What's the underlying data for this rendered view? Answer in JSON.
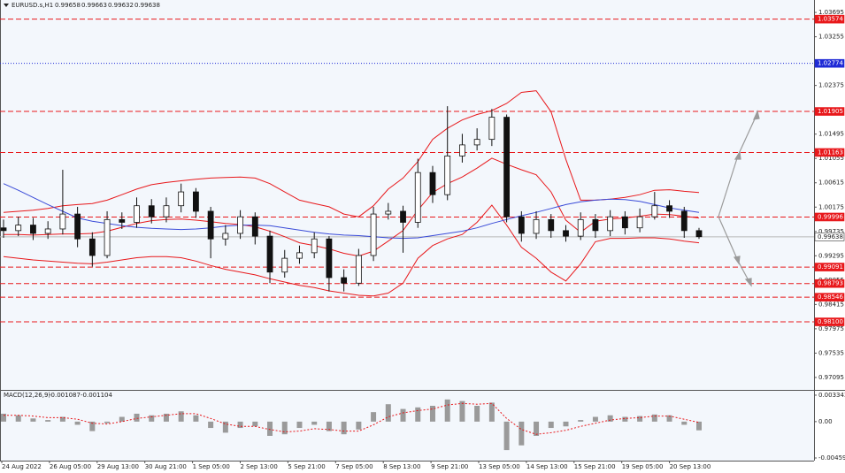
{
  "chart_data": [
    {
      "type": "candlestick",
      "title": "EURUSD.s,H1",
      "header_values": [
        0.99658,
        0.99663,
        0.99632,
        0.99638
      ],
      "x_labels": [
        "24 Aug 2022",
        "26 Aug 05:00",
        "29 Aug 13:00",
        "30 Aug 21:00",
        "1 Sep 05:00",
        "2 Sep 13:00",
        "5 Sep 21:00",
        "7 Sep 05:00",
        "8 Sep 13:00",
        "9 Sep 21:00",
        "13 Sep 05:00",
        "14 Sep 13:00",
        "15 Sep 21:00",
        "19 Sep 05:00",
        "20 Sep 13:00"
      ],
      "ohlc": {
        "open": [
          0.998,
          0.9975,
          0.9985,
          0.997,
          0.9978,
          1.0005,
          0.996,
          0.993,
          0.9995,
          0.999,
          1.002,
          1.0,
          1.002,
          1.0045,
          1.001,
          0.996,
          0.997,
          1.0,
          0.9965,
          0.99,
          0.9925,
          0.9935,
          0.996,
          0.989,
          0.988,
          0.993,
          1.0005,
          1.001,
          0.999,
          1.008,
          1.004,
          1.011,
          1.013,
          1.014,
          1.018,
          1.0,
          0.997,
          0.9995,
          0.9975,
          0.9965,
          0.9995,
          0.9975,
          1.0,
          0.998,
          1.0,
          1.002,
          1.001,
          0.9975
        ],
        "high": [
          0.9995,
          1.0,
          0.9998,
          0.9992,
          1.0085,
          1.0018,
          0.9972,
          1.001,
          1.0008,
          1.0035,
          1.0032,
          1.0035,
          1.006,
          1.0052,
          1.0018,
          0.9985,
          1.0012,
          1.0008,
          0.9975,
          0.994,
          0.9948,
          0.9972,
          0.9965,
          0.9905,
          0.9942,
          1.0018,
          1.0025,
          1.002,
          1.0105,
          1.0092,
          1.02,
          1.015,
          1.016,
          1.0195,
          1.0185,
          1.001,
          1.001,
          1.0005,
          0.9985,
          1.0008,
          1.0005,
          1.0012,
          1.001,
          1.0015,
          1.0045,
          1.003,
          1.0018,
          0.998
        ],
        "low": [
          0.9962,
          0.9965,
          0.9958,
          0.996,
          0.9968,
          0.9945,
          0.991,
          0.9925,
          0.9978,
          0.998,
          0.9988,
          0.999,
          1.0008,
          0.9998,
          0.9925,
          0.9948,
          0.996,
          0.995,
          0.988,
          0.989,
          0.9915,
          0.9925,
          0.9865,
          0.9865,
          0.9875,
          0.992,
          0.9995,
          0.9935,
          0.998,
          1.0025,
          1.003,
          1.0098,
          1.012,
          1.0128,
          0.999,
          0.9955,
          0.996,
          0.9962,
          0.9955,
          0.9958,
          0.9962,
          0.9965,
          0.9968,
          0.9972,
          0.9995,
          0.9998,
          0.9962,
          0.996
        ],
        "close": [
          0.9975,
          0.9985,
          0.997,
          0.9978,
          1.0005,
          0.996,
          0.993,
          0.9995,
          0.999,
          1.002,
          1.0,
          1.002,
          1.0045,
          1.001,
          0.996,
          0.997,
          1.0,
          0.9965,
          0.99,
          0.9925,
          0.9935,
          0.996,
          0.989,
          0.988,
          0.993,
          1.0005,
          1.001,
          0.999,
          1.008,
          1.004,
          1.011,
          1.013,
          1.014,
          1.018,
          1.0,
          0.997,
          0.9995,
          0.9975,
          0.9965,
          0.9995,
          0.9975,
          1.0,
          0.998,
          1.0,
          1.002,
          1.001,
          0.9975,
          0.9964
        ]
      },
      "candle_color": "#111111",
      "indicators": [
        {
          "color": "#e8181b",
          "values": [
            1.0008,
            1.001,
            1.0012,
            1.0015,
            1.002,
            1.0022,
            1.0024,
            1.003,
            1.004,
            1.005,
            1.0058,
            1.0062,
            1.0065,
            1.0068,
            1.007,
            1.0071,
            1.0072,
            1.007,
            1.006,
            1.0045,
            1.003,
            1.0024,
            1.0018,
            1.0005,
            1.0,
            1.002,
            1.005,
            1.007,
            1.01,
            1.014,
            1.016,
            1.0175,
            1.0185,
            1.0192,
            1.0205,
            1.0225,
            1.0228,
            1.019,
            1.0104,
            1.003,
            1.003,
            1.0032,
            1.0035,
            1.004,
            1.0048,
            1.0049,
            1.0046,
            1.0044
          ]
        },
        {
          "color": "#e8181b",
          "values": [
            0.9968,
            0.9968,
            0.9967,
            0.9968,
            0.9969,
            0.9969,
            0.997,
            0.9974,
            0.9981,
            0.9988,
            0.9993,
            0.9995,
            0.9996,
            0.9994,
            0.9991,
            0.9988,
            0.9986,
            0.9982,
            0.9974,
            0.9964,
            0.9953,
            0.9948,
            0.9942,
            0.9934,
            0.9929,
            0.9938,
            0.9956,
            0.9975,
            1.0012,
            1.0044,
            1.006,
            1.0072,
            1.0088,
            1.0106,
            1.0095,
            1.0085,
            1.0076,
            1.0045,
            0.9994,
            0.9972,
            0.9992,
            0.9996,
            0.9998,
            1.0001,
            1.0005,
            1.0004,
            1.0001,
            0.9998
          ]
        },
        {
          "color": "#e8181b",
          "values": [
            0.9928,
            0.9925,
            0.9922,
            0.992,
            0.9918,
            0.9916,
            0.9915,
            0.9918,
            0.9922,
            0.9926,
            0.9928,
            0.9928,
            0.9926,
            0.992,
            0.9912,
            0.9905,
            0.99,
            0.9895,
            0.9888,
            0.9882,
            0.9876,
            0.9872,
            0.9866,
            0.9862,
            0.9858,
            0.9857,
            0.9862,
            0.988,
            0.9925,
            0.9948,
            0.996,
            0.9968,
            0.999,
            1.0021,
            0.9985,
            0.9945,
            0.9925,
            0.99,
            0.9884,
            0.9915,
            0.9955,
            0.9961,
            0.9961,
            0.9962,
            0.9962,
            0.996,
            0.9956,
            0.9953
          ]
        },
        {
          "color": "#3a4bd8",
          "values": [
            1.006,
            1.0048,
            1.0035,
            1.0022,
            1.001,
            0.9998,
            0.9992,
            0.9988,
            0.9984,
            0.9981,
            0.9979,
            0.9978,
            0.9977,
            0.9978,
            0.998,
            0.9983,
            0.9985,
            0.9985,
            0.9984,
            0.998,
            0.9976,
            0.9972,
            0.9969,
            0.9967,
            0.9966,
            0.9964,
            0.9962,
            0.9961,
            0.9962,
            0.9966,
            0.997,
            0.9974,
            0.998,
            0.9988,
            0.9995,
            1.0002,
            1.0008,
            1.0015,
            1.0022,
            1.0027,
            1.003,
            1.0032,
            1.0031,
            1.0028,
            1.0022,
            1.0016,
            1.0012,
            1.0008
          ]
        }
      ],
      "levels": [
        {
          "value": 1.03574,
          "color": "#e8181b",
          "style": "dashed"
        },
        {
          "value": 1.02774,
          "color": "#1f2bd6",
          "style": "dotted"
        },
        {
          "value": 1.01905,
          "color": "#e8181b",
          "style": "dashed"
        },
        {
          "value": 1.01163,
          "color": "#e8181b",
          "style": "dashed"
        },
        {
          "value": 0.99996,
          "color": "#e8181b",
          "style": "dashed"
        },
        {
          "value": 0.99638,
          "color": "#b8b8b8",
          "style": "solid",
          "current": true
        },
        {
          "value": 0.99091,
          "color": "#e8181b",
          "style": "dashed"
        },
        {
          "value": 0.98793,
          "color": "#e8181b",
          "style": "dashed"
        },
        {
          "value": 0.98546,
          "color": "#e8181b",
          "style": "dashed"
        },
        {
          "value": 0.981,
          "label": "0.98100",
          "color": "#e8181b",
          "style": "dashed"
        }
      ],
      "ylim": [
        0.9687,
        1.0392
      ],
      "yticks": [
        1.03695,
        1.03255,
        1.02375,
        1.01495,
        1.01055,
        1.00615,
        1.00175,
        0.99735,
        0.99295,
        0.98855,
        0.98415,
        0.97975,
        0.97535,
        0.97095
      ]
    },
    {
      "type": "macd",
      "title": "MACD(12,26,9)",
      "header_values": [
        -0.001087,
        -0.001104
      ],
      "histogram": {
        "color": "#9a9a9a",
        "values": [
          0.001,
          0.0008,
          0.0004,
          0.0002,
          0.0006,
          -0.0004,
          -0.0012,
          -0.0002,
          0.0006,
          0.001,
          0.0008,
          0.001,
          0.0013,
          0.0008,
          -0.0008,
          -0.0014,
          -0.0008,
          -0.0006,
          -0.0018,
          -0.0016,
          -0.0008,
          -0.0004,
          -0.0012,
          -0.0016,
          -0.001,
          0.0012,
          0.0022,
          0.0016,
          0.0018,
          0.002,
          0.0028,
          0.0026,
          0.002,
          0.0024,
          -0.0036,
          -0.003,
          -0.0018,
          -0.0008,
          -0.0006,
          0.0002,
          0.0006,
          0.0008,
          0.0006,
          0.0007,
          0.0009,
          0.0008,
          -0.0004,
          -0.0011
        ]
      },
      "signal": {
        "color": "#e8181b",
        "values": [
          0.0008,
          0.0008,
          0.0007,
          0.0005,
          0.0005,
          0.0003,
          -0.0002,
          -0.0003,
          0.0,
          0.0004,
          0.0006,
          0.0008,
          0.001,
          0.001,
          0.0004,
          -0.0003,
          -0.0006,
          -0.0006,
          -0.001,
          -0.0013,
          -0.0012,
          -0.0009,
          -0.001,
          -0.0012,
          -0.0012,
          -0.0004,
          0.0006,
          0.0011,
          0.0014,
          0.0016,
          0.0021,
          0.0023,
          0.0022,
          0.0023,
          0.0004,
          -0.001,
          -0.0016,
          -0.0014,
          -0.0011,
          -0.0006,
          -0.0002,
          0.0002,
          0.0004,
          0.0005,
          0.0007,
          0.0007,
          0.0003,
          -0.0001
        ]
      },
      "ylim": [
        -0.00493,
        0.00401
      ],
      "yticks": [
        0.003343,
        {
          "value": 0,
          "label": "0.00"
        },
        -0.004595
      ]
    }
  ]
}
